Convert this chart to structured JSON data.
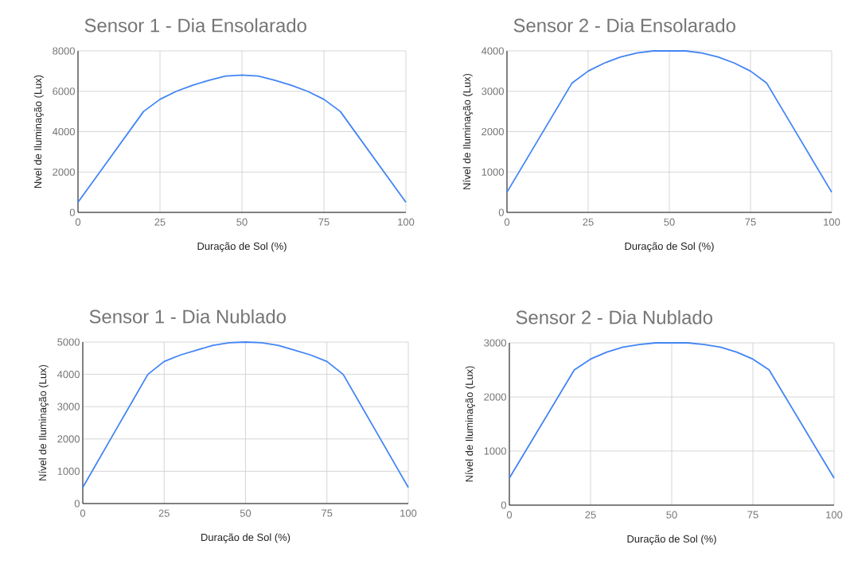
{
  "chart_data": [
    {
      "type": "line",
      "title": "Sensor 1 - Dia Ensolarado",
      "xlabel": "Duração de Sol (%)",
      "ylabel": "Nvel de Iluminação (Lux)",
      "color": "#4285f4",
      "grid": true,
      "xlim": [
        0,
        100
      ],
      "xticks": [
        0,
        25,
        50,
        75,
        100
      ],
      "ylim": [
        0,
        8000
      ],
      "yticks": [
        0,
        2000,
        4000,
        6000,
        8000
      ],
      "x": [
        0,
        10,
        20,
        25,
        30,
        35,
        40,
        45,
        50,
        55,
        60,
        65,
        70,
        75,
        80,
        90,
        100
      ],
      "values": [
        500,
        2750,
        5000,
        5600,
        6000,
        6300,
        6550,
        6750,
        6800,
        6750,
        6550,
        6300,
        6000,
        5600,
        5000,
        2750,
        500
      ]
    },
    {
      "type": "line",
      "title": "Sensor 2 - Dia Ensolarado",
      "xlabel": "Duração de Sol (%)",
      "ylabel": "Nível de Iluminação (Lux)",
      "color": "#4285f4",
      "grid": true,
      "xlim": [
        0,
        100
      ],
      "xticks": [
        0,
        25,
        50,
        75,
        100
      ],
      "ylim": [
        0,
        4000
      ],
      "yticks": [
        0,
        1000,
        2000,
        3000,
        4000
      ],
      "x": [
        0,
        10,
        20,
        25,
        30,
        35,
        40,
        45,
        50,
        55,
        60,
        65,
        70,
        75,
        80,
        90,
        100
      ],
      "values": [
        500,
        1850,
        3200,
        3500,
        3700,
        3850,
        3950,
        4000,
        4000,
        4000,
        3950,
        3850,
        3700,
        3500,
        3200,
        1850,
        500
      ]
    },
    {
      "type": "line",
      "title": "Sensor 1 - Dia Nublado",
      "xlabel": "Duração de Sol (%)",
      "ylabel": "Nível de Iluminação (Lux)",
      "color": "#4285f4",
      "grid": true,
      "xlim": [
        0,
        100
      ],
      "xticks": [
        0,
        25,
        50,
        75,
        100
      ],
      "ylim": [
        0,
        5000
      ],
      "yticks": [
        0,
        1000,
        2000,
        3000,
        4000,
        5000
      ],
      "x": [
        0,
        10,
        20,
        25,
        30,
        35,
        40,
        45,
        50,
        55,
        60,
        65,
        70,
        75,
        80,
        90,
        100
      ],
      "values": [
        500,
        2250,
        4000,
        4400,
        4600,
        4750,
        4900,
        4980,
        5000,
        4980,
        4900,
        4750,
        4600,
        4400,
        4000,
        2250,
        500
      ]
    },
    {
      "type": "line",
      "title": "Sensor 2 - Dia Nublado",
      "xlabel": "Duração de Sol (%)",
      "ylabel": "Nível de Iluminação (Lux)",
      "color": "#4285f4",
      "grid": true,
      "xlim": [
        0,
        100
      ],
      "xticks": [
        0,
        25,
        50,
        75,
        100
      ],
      "ylim": [
        0,
        3000
      ],
      "yticks": [
        0,
        1000,
        2000,
        3000
      ],
      "x": [
        0,
        10,
        20,
        25,
        30,
        35,
        40,
        45,
        50,
        55,
        60,
        65,
        70,
        75,
        80,
        90,
        100
      ],
      "values": [
        500,
        1500,
        2500,
        2700,
        2830,
        2920,
        2970,
        3000,
        3000,
        3000,
        2970,
        2920,
        2830,
        2700,
        2500,
        1500,
        500
      ]
    }
  ]
}
